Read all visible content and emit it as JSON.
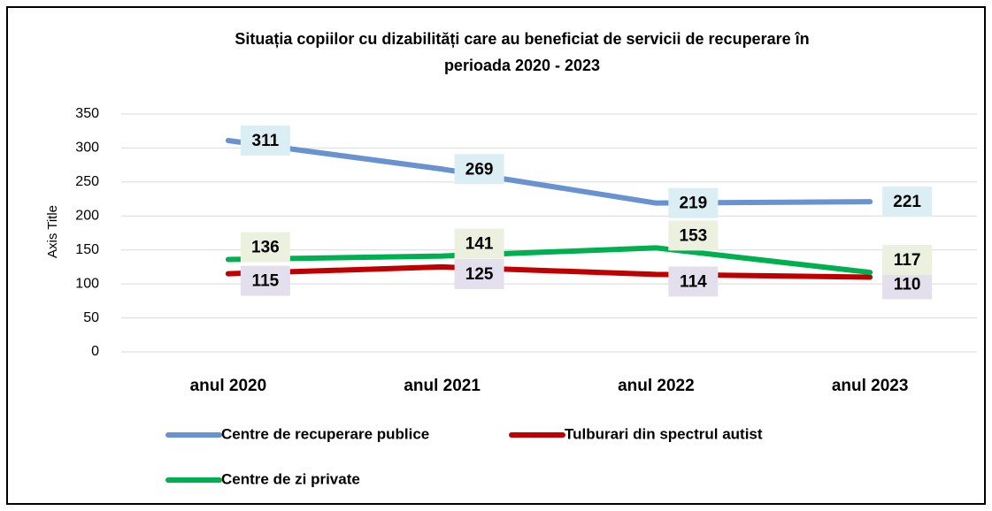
{
  "chart_data": {
    "type": "line",
    "title": "Situația copiilor cu dizabilități care au beneficiat de servicii de recuperare în perioada 2020 - 2023",
    "y_axis_label": "Axis Title",
    "categories": [
      "anul 2020",
      "anul 2021",
      "anul 2022",
      "anul 2023"
    ],
    "series": [
      {
        "name": "Centre de recuperare publice",
        "color": "#6993d0",
        "values": [
          311,
          269,
          219,
          221
        ]
      },
      {
        "name": "Tulburari din spectrul autist",
        "color": "#c00000",
        "values": [
          115,
          125,
          114,
          110
        ]
      },
      {
        "name": "Centre de zi private",
        "color": "#00b050",
        "values": [
          136,
          141,
          153,
          117
        ]
      }
    ],
    "ylim": [
      0,
      350
    ],
    "yticks": [
      0,
      50,
      100,
      150,
      200,
      250,
      300,
      350
    ],
    "grid": true,
    "legend": "bottom"
  }
}
